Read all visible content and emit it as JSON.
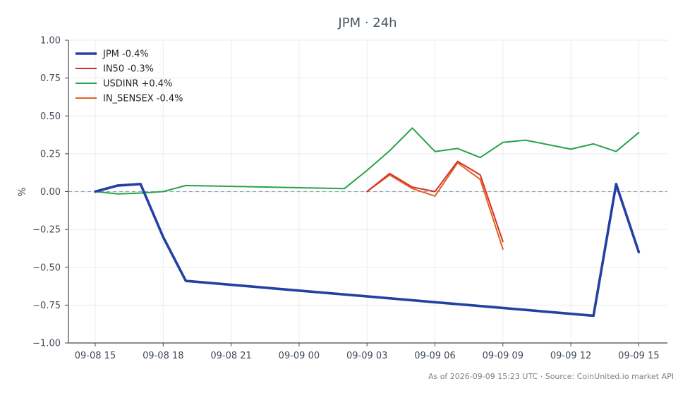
{
  "chart_data": {
    "type": "line",
    "title": "JPM · 24h",
    "xlabel": "",
    "ylabel": "%",
    "ylim": [
      -1.0,
      1.0
    ],
    "x_tick_labels": [
      "09-08 15",
      "09-08 18",
      "09-08 21",
      "09-09 00",
      "09-09 03",
      "09-09 06",
      "09-09 09",
      "09-09 12",
      "09-09 15"
    ],
    "y_tick_labels": [
      "−1.00",
      "−0.75",
      "−0.50",
      "−0.25",
      "0.00",
      "0.25",
      "0.50",
      "0.75",
      "1.00"
    ],
    "y_ticks": [
      -1.0,
      -0.75,
      -0.5,
      -0.25,
      0.0,
      0.25,
      0.5,
      0.75,
      1.0
    ],
    "grid": true,
    "reference_line": 0.0,
    "legend_position": "top-left",
    "series": [
      {
        "name": "JPM -0.4%",
        "color": "#2340a3",
        "points": [
          {
            "x": "2026-09-08 15:00",
            "y": 0.0
          },
          {
            "x": "2026-09-08 16:00",
            "y": 0.04
          },
          {
            "x": "2026-09-08 17:00",
            "y": 0.05
          },
          {
            "x": "2026-09-08 18:00",
            "y": -0.3
          },
          {
            "x": "2026-09-08 19:00",
            "y": -0.59
          },
          {
            "x": "2026-09-09 13:00",
            "y": -0.82
          },
          {
            "x": "2026-09-09 14:00",
            "y": 0.05
          },
          {
            "x": "2026-09-09 15:00",
            "y": -0.4
          }
        ]
      },
      {
        "name": "IN50 -0.3%",
        "color": "#d62f2f",
        "points": [
          {
            "x": "2026-09-09 03:00",
            "y": 0.0
          },
          {
            "x": "2026-09-09 04:00",
            "y": 0.12
          },
          {
            "x": "2026-09-09 05:00",
            "y": 0.03
          },
          {
            "x": "2026-09-09 06:00",
            "y": 0.0
          },
          {
            "x": "2026-09-09 07:00",
            "y": 0.2
          },
          {
            "x": "2026-09-09 08:00",
            "y": 0.11
          },
          {
            "x": "2026-09-09 09:00",
            "y": -0.33
          }
        ]
      },
      {
        "name": "USDINR +0.4%",
        "color": "#26a34b",
        "points": [
          {
            "x": "2026-09-08 15:00",
            "y": 0.0
          },
          {
            "x": "2026-09-08 16:00",
            "y": -0.015
          },
          {
            "x": "2026-09-08 17:00",
            "y": -0.01
          },
          {
            "x": "2026-09-08 18:00",
            "y": 0.0
          },
          {
            "x": "2026-09-08 19:00",
            "y": 0.04
          },
          {
            "x": "2026-09-09 02:00",
            "y": 0.02
          },
          {
            "x": "2026-09-09 03:00",
            "y": 0.14
          },
          {
            "x": "2026-09-09 04:00",
            "y": 0.27
          },
          {
            "x": "2026-09-09 05:00",
            "y": 0.42
          },
          {
            "x": "2026-09-09 06:00",
            "y": 0.265
          },
          {
            "x": "2026-09-09 07:00",
            "y": 0.285
          },
          {
            "x": "2026-09-09 08:00",
            "y": 0.225
          },
          {
            "x": "2026-09-09 09:00",
            "y": 0.325
          },
          {
            "x": "2026-09-09 10:00",
            "y": 0.34
          },
          {
            "x": "2026-09-09 12:00",
            "y": 0.28
          },
          {
            "x": "2026-09-09 13:00",
            "y": 0.315
          },
          {
            "x": "2026-09-09 14:00",
            "y": 0.265
          },
          {
            "x": "2026-09-09 15:00",
            "y": 0.39
          }
        ]
      },
      {
        "name": "IN_SENSEX -0.4%",
        "color": "#e0641c",
        "points": [
          {
            "x": "2026-09-09 03:00",
            "y": 0.0
          },
          {
            "x": "2026-09-09 04:00",
            "y": 0.11
          },
          {
            "x": "2026-09-09 05:00",
            "y": 0.02
          },
          {
            "x": "2026-09-09 06:00",
            "y": -0.03
          },
          {
            "x": "2026-09-09 07:00",
            "y": 0.19
          },
          {
            "x": "2026-09-09 08:00",
            "y": 0.08
          },
          {
            "x": "2026-09-09 09:00",
            "y": -0.38
          }
        ]
      }
    ],
    "annotation": "As of 2026-09-09 15:23 UTC · Source: CoinUnited.io market API"
  }
}
